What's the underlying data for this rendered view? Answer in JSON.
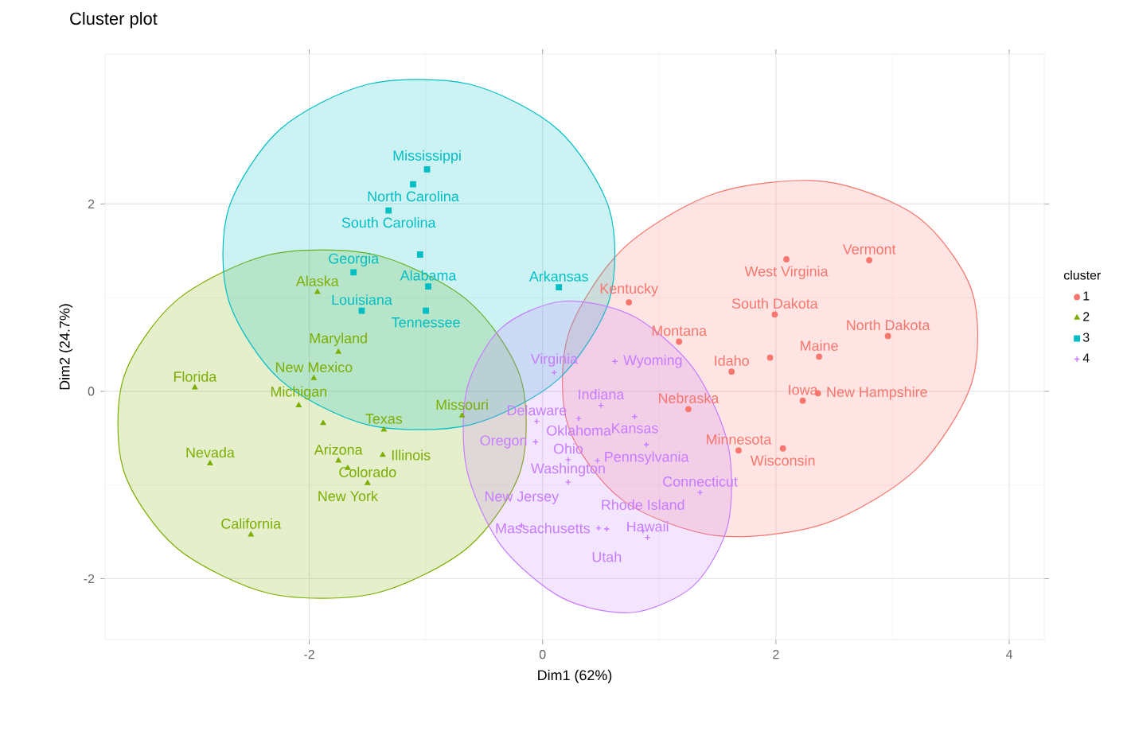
{
  "chart_data": {
    "type": "scatter",
    "title": "Cluster plot",
    "xlabel": "Dim1 (62%)",
    "ylabel": "Dim2 (24.7%)",
    "legend_title": "cluster",
    "legend": "right",
    "grid": true,
    "xlim": [
      -3.75,
      4.3
    ],
    "ylim": [
      -2.65,
      3.6
    ],
    "xticks": [
      -2,
      0,
      2,
      4
    ],
    "yticks": [
      -2,
      0,
      2
    ],
    "series": [
      {
        "type": "area",
        "color": "#F8766D",
        "x": [
          3.73,
          3.49,
          2.84,
          1.95,
          1.06,
          0.41,
          0.17,
          0.41,
          1.06,
          1.95,
          2.84,
          3.49
        ],
        "values": [
          0.59,
          1.5,
          2.1,
          2.23,
          1.86,
          1.08,
          0.11,
          -0.8,
          -1.4,
          -1.53,
          -1.16,
          -0.38
        ]
      },
      {
        "type": "area",
        "color": "#7CAE00",
        "x": [
          -0.14,
          -0.37,
          -1.02,
          -1.89,
          -2.76,
          -3.41,
          -3.64,
          -3.41,
          -2.76,
          -1.89,
          -1.02,
          -0.37
        ],
        "values": [
          -0.35,
          0.58,
          1.26,
          1.51,
          1.26,
          0.58,
          -0.35,
          -1.28,
          -1.96,
          -2.21,
          -1.96,
          -1.28
        ]
      },
      {
        "type": "area",
        "color": "#00BFC4",
        "x": [
          0.62,
          0.39,
          -0.22,
          -1.06,
          -1.9,
          -2.51,
          -2.74,
          -2.51,
          -1.9,
          -1.06,
          -0.22,
          0.39
        ],
        "values": [
          1.46,
          2.4,
          3.08,
          3.33,
          3.08,
          2.4,
          1.46,
          0.52,
          -0.16,
          -0.41,
          -0.16,
          0.52
        ]
      },
      {
        "type": "area",
        "color": "#C77CFF",
        "x": [
          1.62,
          1.47,
          1.05,
          0.47,
          -0.11,
          -0.53,
          -0.68,
          -0.53,
          -0.11,
          0.47,
          1.05,
          1.47
        ],
        "values": [
          -1.0,
          -0.15,
          0.56,
          0.93,
          0.86,
          0.38,
          -0.4,
          -1.26,
          -1.96,
          -2.33,
          -2.26,
          -1.78
        ]
      },
      {
        "name": "1",
        "color": "#F8766D",
        "marker": "circle",
        "x": [
          1.62,
          2.23,
          0.74,
          2.37,
          1.68,
          1.17,
          1.25,
          2.36,
          2.96,
          1.99,
          2.8,
          2.09,
          2.06
        ],
        "values": [
          0.21,
          -0.1,
          0.95,
          0.37,
          -0.63,
          0.53,
          -0.19,
          -0.02,
          0.59,
          0.82,
          1.4,
          1.41,
          -0.61
        ]
      },
      {
        "name": "2",
        "color": "#7CAE00",
        "marker": "triangle",
        "x": [
          -1.93,
          -1.75,
          -2.5,
          -1.5,
          -2.98,
          -1.37,
          -1.75,
          -2.09,
          -0.69,
          -2.85,
          -1.96,
          -1.67,
          -1.36
        ],
        "values": [
          1.06,
          -0.74,
          -1.53,
          -0.98,
          0.04,
          -0.68,
          0.42,
          -0.15,
          -0.26,
          -0.77,
          0.14,
          -0.82,
          -0.41
        ]
      },
      {
        "name": "3",
        "color": "#00BFC4",
        "marker": "square",
        "x": [
          -0.98,
          0.14,
          -1.62,
          -1.55,
          -0.99,
          -1.11,
          -1.32,
          -1.0
        ],
        "values": [
          1.12,
          1.11,
          1.27,
          0.86,
          2.37,
          2.21,
          1.93,
          0.86
        ]
      },
      {
        "name": "4",
        "color": "#C77CFF",
        "marker": "cross",
        "x": [
          1.35,
          -0.05,
          0.9,
          0.5,
          0.79,
          0.48,
          -0.18,
          0.22,
          0.31,
          -0.06,
          0.89,
          0.86,
          0.55,
          0.1,
          0.22,
          0.62
        ],
        "values": [
          -1.08,
          -0.32,
          -1.56,
          -0.15,
          -0.27,
          -1.46,
          -1.43,
          -0.73,
          -0.29,
          -0.54,
          -0.57,
          -1.49,
          -1.47,
          0.2,
          -0.97,
          0.32
        ]
      },
      {
        "type": "scatter",
        "color": "#F8766D",
        "marker": "circle",
        "x": [
          1.95
        ],
        "values": [
          0.36
        ]
      },
      {
        "type": "scatter",
        "color": "#7CAE00",
        "marker": "triangle",
        "x": [
          -1.88
        ],
        "values": [
          -0.34
        ]
      },
      {
        "type": "scatter",
        "color": "#00BFC4",
        "marker": "square",
        "x": [
          -1.05
        ],
        "values": [
          1.46
        ]
      },
      {
        "type": "scatter",
        "color": "#C77CFF",
        "marker": "cross",
        "x": [
          0.47
        ],
        "values": [
          -0.74
        ]
      }
    ],
    "annotations": [
      {
        "text": "Idaho",
        "x": 1.62,
        "y": 0.21
      },
      {
        "text": "Iowa",
        "x": 2.23,
        "y": -0.1
      },
      {
        "text": "Kentucky",
        "x": 0.74,
        "y": 0.95
      },
      {
        "text": "Maine",
        "x": 2.37,
        "y": 0.37
      },
      {
        "text": "Minnesota",
        "x": 1.68,
        "y": -0.63
      },
      {
        "text": "Montana",
        "x": 1.17,
        "y": 0.53
      },
      {
        "text": "Nebraska",
        "x": 1.25,
        "y": -0.19
      },
      {
        "text": "New Hampshire",
        "x": 2.36,
        "y": -0.02
      },
      {
        "text": "North Dakota",
        "x": 2.96,
        "y": 0.59
      },
      {
        "text": "South Dakota",
        "x": 1.99,
        "y": 0.82
      },
      {
        "text": "Vermont",
        "x": 2.8,
        "y": 1.4
      },
      {
        "text": "West Virginia",
        "x": 2.09,
        "y": 1.41
      },
      {
        "text": "Wisconsin",
        "x": 2.06,
        "y": -0.61
      },
      {
        "text": "Alaska",
        "x": -1.93,
        "y": 1.06
      },
      {
        "text": "Arizona",
        "x": -1.75,
        "y": -0.74
      },
      {
        "text": "California",
        "x": -2.5,
        "y": -1.53
      },
      {
        "text": "Colorado",
        "x": -1.5,
        "y": -0.98
      },
      {
        "text": "Florida",
        "x": -2.98,
        "y": 0.04
      },
      {
        "text": "Illinois",
        "x": -1.37,
        "y": -0.68
      },
      {
        "text": "Maryland",
        "x": -1.75,
        "y": 0.42
      },
      {
        "text": "Michigan",
        "x": -2.09,
        "y": -0.15
      },
      {
        "text": "Missouri",
        "x": -0.69,
        "y": -0.26
      },
      {
        "text": "Nevada",
        "x": -2.85,
        "y": -0.77
      },
      {
        "text": "New Mexico",
        "x": -1.96,
        "y": 0.14
      },
      {
        "text": "New York",
        "x": -1.67,
        "y": -0.82
      },
      {
        "text": "Texas",
        "x": -1.36,
        "y": -0.41
      },
      {
        "text": "Alabama",
        "x": -0.98,
        "y": 1.12
      },
      {
        "text": "Arkansas",
        "x": 0.14,
        "y": 1.11
      },
      {
        "text": "Georgia",
        "x": -1.62,
        "y": 1.27
      },
      {
        "text": "Louisiana",
        "x": -1.55,
        "y": 0.86
      },
      {
        "text": "Mississippi",
        "x": -0.99,
        "y": 2.37
      },
      {
        "text": "North Carolina",
        "x": -1.11,
        "y": 2.21
      },
      {
        "text": "South Carolina",
        "x": -1.32,
        "y": 1.93
      },
      {
        "text": "Tennessee",
        "x": -1.0,
        "y": 0.86
      },
      {
        "text": "Connecticut",
        "x": 1.35,
        "y": -1.08
      },
      {
        "text": "Delaware",
        "x": -0.05,
        "y": -0.32
      },
      {
        "text": "Hawaii",
        "x": 0.9,
        "y": -1.56
      },
      {
        "text": "Indiana",
        "x": 0.5,
        "y": -0.15
      },
      {
        "text": "Kansas",
        "x": 0.79,
        "y": -0.27
      },
      {
        "text": "Massachusetts",
        "x": 0.48,
        "y": -1.46
      },
      {
        "text": "New Jersey",
        "x": -0.18,
        "y": -1.43
      },
      {
        "text": "Ohio",
        "x": 0.22,
        "y": -0.73
      },
      {
        "text": "Oklahoma",
        "x": 0.31,
        "y": -0.29
      },
      {
        "text": "Oregon",
        "x": -0.06,
        "y": -0.54
      },
      {
        "text": "Pennsylvania",
        "x": 0.89,
        "y": -0.57
      },
      {
        "text": "Rhode Island",
        "x": 0.86,
        "y": -1.49
      },
      {
        "text": "Utah",
        "x": 0.55,
        "y": -1.47
      },
      {
        "text": "Virginia",
        "x": 0.1,
        "y": 0.2
      },
      {
        "text": "Washington",
        "x": 0.22,
        "y": -0.97
      },
      {
        "text": "Wyoming",
        "x": 0.62,
        "y": 0.32
      }
    ]
  }
}
